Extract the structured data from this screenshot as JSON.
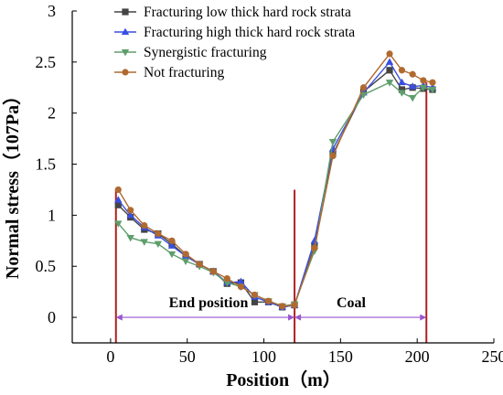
{
  "chart_data": {
    "type": "line",
    "xlabel": "Position（m）",
    "ylabel": "Normal stress（107Pa）",
    "xlim": [
      -25,
      250
    ],
    "ylim": [
      -0.25,
      3
    ],
    "xticks": [
      0,
      50,
      100,
      150,
      200,
      250
    ],
    "yticks": [
      0,
      0.5,
      1,
      1.5,
      2,
      2.5,
      3
    ],
    "legend_position": "top-left",
    "series": [
      {
        "name": "Fracturing low thick hard rock strata",
        "color": "#444444",
        "marker": "square",
        "x": [
          5,
          13,
          22,
          31,
          40,
          49,
          58,
          67,
          76,
          85,
          94,
          103,
          112,
          120,
          133,
          145,
          165,
          182,
          190,
          197,
          204,
          210
        ],
        "y": [
          1.1,
          0.98,
          0.86,
          0.82,
          0.72,
          0.6,
          0.52,
          0.45,
          0.33,
          0.34,
          0.15,
          0.15,
          0.1,
          0.12,
          0.7,
          1.6,
          2.21,
          2.42,
          2.23,
          2.25,
          2.24,
          2.23
        ]
      },
      {
        "name": "Fracturing high thick hard rock strata",
        "color": "#3a4fe0",
        "marker": "triangle-up",
        "x": [
          5,
          13,
          22,
          31,
          40,
          49,
          58,
          67,
          76,
          85,
          94,
          103,
          112,
          120,
          133,
          145,
          165,
          182,
          190,
          197,
          204,
          210
        ],
        "y": [
          1.15,
          1.0,
          0.88,
          0.8,
          0.7,
          0.6,
          0.52,
          0.45,
          0.34,
          0.35,
          0.2,
          0.15,
          0.1,
          0.12,
          0.75,
          1.65,
          2.2,
          2.5,
          2.3,
          2.26,
          2.27,
          2.25
        ]
      },
      {
        "name": "Synergistic fracturing",
        "color": "#5e9e6a",
        "marker": "triangle-down",
        "x": [
          5,
          13,
          22,
          31,
          40,
          49,
          58,
          67,
          76,
          85,
          94,
          103,
          112,
          120,
          133,
          145,
          165,
          182,
          190,
          197,
          204,
          210
        ],
        "y": [
          0.92,
          0.78,
          0.74,
          0.72,
          0.62,
          0.55,
          0.5,
          0.44,
          0.34,
          0.3,
          0.22,
          0.16,
          0.11,
          0.13,
          0.65,
          1.72,
          2.18,
          2.3,
          2.2,
          2.15,
          2.25,
          2.23
        ]
      },
      {
        "name": "Not fracturing",
        "color": "#b06a30",
        "marker": "circle",
        "x": [
          5,
          13,
          22,
          31,
          40,
          49,
          58,
          67,
          76,
          85,
          94,
          103,
          112,
          120,
          133,
          145,
          165,
          182,
          190,
          197,
          204,
          210
        ],
        "y": [
          1.25,
          1.05,
          0.9,
          0.82,
          0.75,
          0.62,
          0.52,
          0.45,
          0.38,
          0.3,
          0.22,
          0.16,
          0.11,
          0.12,
          0.68,
          1.58,
          2.25,
          2.58,
          2.42,
          2.38,
          2.32,
          2.3
        ]
      }
    ],
    "annotations": {
      "end_position_label": "End position",
      "coal_label": "Coal",
      "vertical_lines_x": [
        3.5,
        120,
        206
      ],
      "bracket_y": 0.0,
      "line_color": "#b02020",
      "arrow_color": "#9a55d0"
    }
  }
}
